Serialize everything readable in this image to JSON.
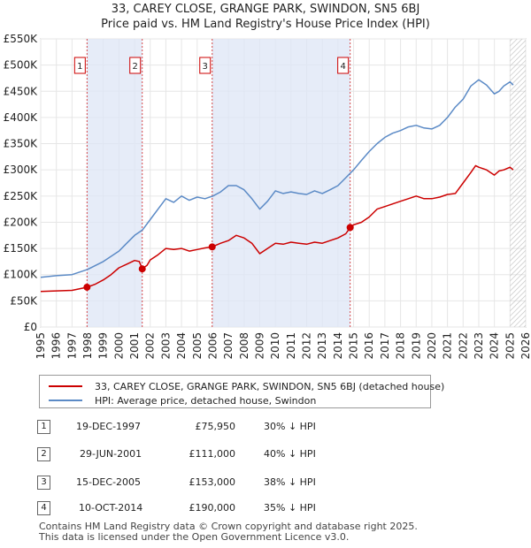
{
  "title_line1": "33, CAREY CLOSE, GRANGE PARK, SWINDON, SN5 6BJ",
  "title_line2": "Price paid vs. HM Land Registry's House Price Index (HPI)",
  "colors": {
    "property": "#cc0000",
    "hpi": "#5b8ac6",
    "shade": "#dde6f5",
    "grid": "#e6e6e6",
    "marker": "#cc0000"
  },
  "chart_data": {
    "type": "line",
    "xlim": [
      1995,
      2026
    ],
    "ylim": [
      0,
      550000
    ],
    "y_ticks": [
      0,
      50000,
      100000,
      150000,
      200000,
      250000,
      300000,
      350000,
      400000,
      450000,
      500000,
      550000
    ],
    "y_tick_labels": [
      "£0",
      "£50K",
      "£100K",
      "£150K",
      "£200K",
      "£250K",
      "£300K",
      "£350K",
      "£400K",
      "£450K",
      "£500K",
      "£550K"
    ],
    "x_ticks": [
      1995,
      1996,
      1997,
      1998,
      1999,
      2000,
      2001,
      2002,
      2003,
      2004,
      2005,
      2006,
      2007,
      2008,
      2009,
      2010,
      2011,
      2012,
      2013,
      2014,
      2015,
      2016,
      2017,
      2018,
      2019,
      2020,
      2021,
      2022,
      2023,
      2024,
      2025,
      2026
    ],
    "shaded_ranges": [
      [
        1997.96,
        2001.49
      ],
      [
        2005.96,
        2014.78
      ]
    ],
    "hatched_range": [
      2025.0,
      2026
    ],
    "series": [
      {
        "name": "33, CAREY CLOSE, GRANGE PARK, SWINDON, SN5 6BJ (detached house)",
        "x": [
          1995.0,
          1996.0,
          1997.0,
          1997.96,
          1998.5,
          1999.0,
          1999.5,
          2000.0,
          2000.5,
          2001.0,
          2001.3,
          2001.49,
          2001.8,
          2002.0,
          2002.5,
          2003.0,
          2003.5,
          2004.0,
          2004.5,
          2005.0,
          2005.5,
          2005.96,
          2006.5,
          2007.0,
          2007.5,
          2008.0,
          2008.5,
          2009.0,
          2009.5,
          2010.0,
          2010.5,
          2011.0,
          2011.5,
          2012.0,
          2012.5,
          2013.0,
          2013.5,
          2014.0,
          2014.5,
          2014.78,
          2015.0,
          2015.5,
          2016.0,
          2016.5,
          2017.0,
          2017.5,
          2018.0,
          2018.5,
          2019.0,
          2019.5,
          2020.0,
          2020.5,
          2021.0,
          2021.5,
          2022.0,
          2022.5,
          2022.8,
          2023.0,
          2023.5,
          2024.0,
          2024.3,
          2024.6,
          2025.0,
          2025.2
        ],
        "y": [
          68000,
          69000,
          70000,
          75950,
          82000,
          90000,
          100000,
          113000,
          120000,
          127000,
          125000,
          111000,
          118000,
          128000,
          138000,
          150000,
          148000,
          150000,
          145000,
          148000,
          151000,
          153000,
          160000,
          165000,
          175000,
          170000,
          160000,
          140000,
          150000,
          160000,
          158000,
          162000,
          160000,
          158000,
          162000,
          160000,
          165000,
          170000,
          178000,
          190000,
          195000,
          200000,
          210000,
          225000,
          230000,
          235000,
          240000,
          245000,
          250000,
          245000,
          245000,
          248000,
          253000,
          255000,
          275000,
          295000,
          308000,
          305000,
          300000,
          290000,
          298000,
          300000,
          305000,
          300000
        ]
      },
      {
        "name": "HPI: Average price, detached house, Swindon",
        "x": [
          1995.0,
          1996.0,
          1997.0,
          1998.0,
          1999.0,
          2000.0,
          2000.5,
          2001.0,
          2001.5,
          2002.0,
          2002.5,
          2003.0,
          2003.5,
          2004.0,
          2004.5,
          2005.0,
          2005.5,
          2006.0,
          2006.5,
          2007.0,
          2007.5,
          2008.0,
          2008.5,
          2009.0,
          2009.5,
          2010.0,
          2010.5,
          2011.0,
          2011.5,
          2012.0,
          2012.5,
          2013.0,
          2013.5,
          2014.0,
          2014.5,
          2015.0,
          2015.5,
          2016.0,
          2016.5,
          2017.0,
          2017.5,
          2018.0,
          2018.5,
          2019.0,
          2019.5,
          2020.0,
          2020.5,
          2021.0,
          2021.5,
          2022.0,
          2022.5,
          2023.0,
          2023.5,
          2024.0,
          2024.3,
          2024.6,
          2025.0,
          2025.2
        ],
        "y": [
          95000,
          98000,
          100000,
          110000,
          125000,
          145000,
          160000,
          175000,
          185000,
          205000,
          225000,
          245000,
          238000,
          250000,
          242000,
          248000,
          245000,
          250000,
          258000,
          270000,
          270000,
          262000,
          245000,
          225000,
          240000,
          260000,
          255000,
          258000,
          255000,
          253000,
          260000,
          255000,
          262000,
          270000,
          285000,
          300000,
          318000,
          335000,
          350000,
          362000,
          370000,
          375000,
          382000,
          385000,
          380000,
          378000,
          385000,
          400000,
          420000,
          435000,
          460000,
          472000,
          462000,
          445000,
          450000,
          460000,
          468000,
          462000
        ]
      }
    ],
    "sale_markers": [
      {
        "label": "1",
        "x": 1997.96,
        "y": 75950
      },
      {
        "label": "2",
        "x": 2001.49,
        "y": 111000
      },
      {
        "label": "3",
        "x": 2005.96,
        "y": 153000
      },
      {
        "label": "4",
        "x": 2014.78,
        "y": 190000
      }
    ]
  },
  "legend": {
    "property": "33, CAREY CLOSE, GRANGE PARK, SWINDON, SN5 6BJ (detached house)",
    "hpi": "HPI: Average price, detached house, Swindon"
  },
  "sales": [
    {
      "num": "1",
      "date": "19-DEC-1997",
      "price": "£75,950",
      "hpi": "30% ↓ HPI"
    },
    {
      "num": "2",
      "date": "29-JUN-2001",
      "price": "£111,000",
      "hpi": "40% ↓ HPI"
    },
    {
      "num": "3",
      "date": "15-DEC-2005",
      "price": "£153,000",
      "hpi": "38% ↓ HPI"
    },
    {
      "num": "4",
      "date": "10-OCT-2014",
      "price": "£190,000",
      "hpi": "35% ↓ HPI"
    }
  ],
  "footer_line1": "Contains HM Land Registry data © Crown copyright and database right 2025.",
  "footer_line2": "This data is licensed under the Open Government Licence v3.0."
}
